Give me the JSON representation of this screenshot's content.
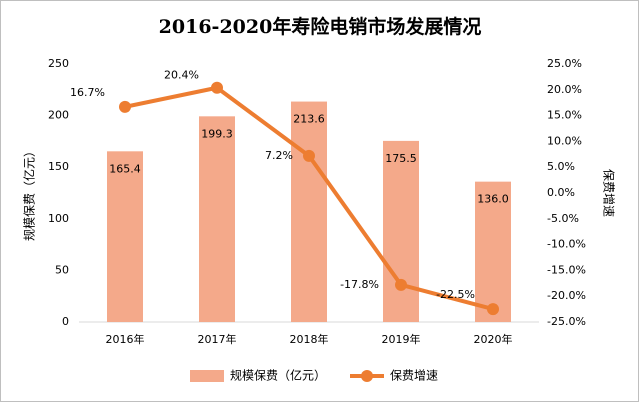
{
  "chart_data": {
    "type": "bar-line",
    "title": "2016-2020年寿险电销市场发展情况",
    "categories": [
      "2016年",
      "2017年",
      "2018年",
      "2019年",
      "2020年"
    ],
    "series": [
      {
        "name": "规模保费（亿元）",
        "type": "bar",
        "color": "#f4a98a",
        "values": [
          165.4,
          199.3,
          213.6,
          175.5,
          136.0
        ],
        "value_labels": [
          "165.4",
          "199.3",
          "213.6",
          "175.5",
          "136.0"
        ]
      },
      {
        "name": "保费增速",
        "type": "line",
        "axis": "y2",
        "color": "#ed7d31",
        "values": [
          16.7,
          20.4,
          7.2,
          -17.8,
          -22.5
        ],
        "value_labels": [
          "16.7%",
          "20.4%",
          "7.2%",
          "-17.8%",
          "-22.5%"
        ]
      }
    ],
    "ylabel": "规模保费（亿元）",
    "y2label": "保费增速",
    "ylim": [
      0,
      250
    ],
    "yticks": [
      0,
      50,
      100,
      150,
      200,
      250
    ],
    "y2lim": [
      -25,
      25
    ],
    "y2ticks": [
      {
        "value": 25,
        "label": "25.0%"
      },
      {
        "value": 20,
        "label": "20.0%"
      },
      {
        "value": 15,
        "label": "15.0%"
      },
      {
        "value": 10,
        "label": "10.0%"
      },
      {
        "value": 5,
        "label": "5.0%"
      },
      {
        "value": 0,
        "label": "0.0%"
      },
      {
        "value": -5,
        "label": "-5.0%"
      },
      {
        "value": -10,
        "label": "-10.0%"
      },
      {
        "value": -15,
        "label": "-15.0%"
      },
      {
        "value": -20,
        "label": "-20.0%"
      },
      {
        "value": -25,
        "label": "-25.0%"
      }
    ],
    "legend": "bottom"
  }
}
